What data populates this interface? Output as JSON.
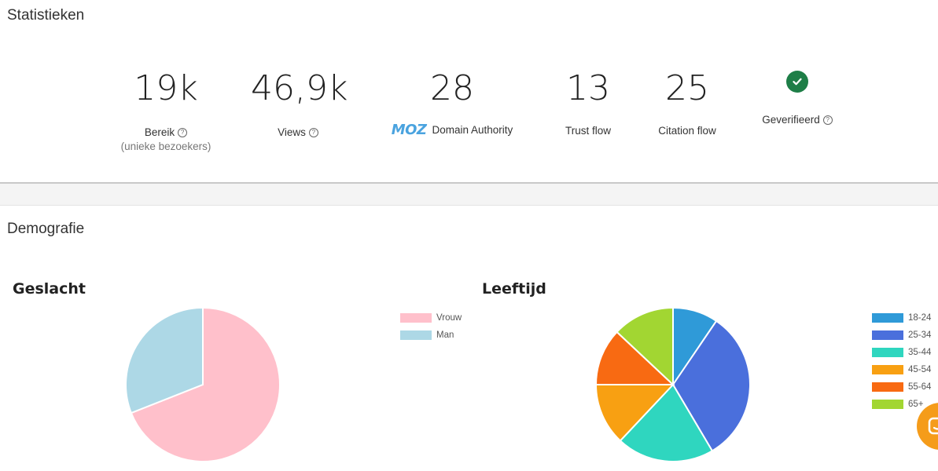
{
  "statistics": {
    "title": "Statistieken",
    "items": [
      {
        "value": "19k",
        "label": "Bereik",
        "sub": "(unieke bezoekers)",
        "help": true
      },
      {
        "value": "46,9k",
        "label": "Views",
        "help": true
      },
      {
        "value": "28",
        "label": "Domain Authority",
        "logo": "MOZ"
      },
      {
        "value": "13",
        "label": "Trust flow"
      },
      {
        "value": "25",
        "label": "Citation flow"
      },
      {
        "label": "Geverifieerd",
        "icon": "check-circle-icon",
        "help": true
      }
    ]
  },
  "demographics": {
    "title": "Demografie"
  },
  "chart_data": [
    {
      "type": "pie",
      "title": "Geslacht",
      "categories": [
        "Vrouw",
        "Man"
      ],
      "values": [
        69,
        31
      ],
      "colors": [
        "#ffc0cb",
        "#add8e6"
      ],
      "legend_position": "top-right"
    },
    {
      "type": "pie",
      "title": "Leeftijd",
      "categories": [
        "18-24",
        "25-34",
        "35-44",
        "45-54",
        "55-64",
        "65+"
      ],
      "values": [
        9.5,
        32,
        20.5,
        13,
        12,
        13
      ],
      "colors": [
        "#2f9ad8",
        "#4a6fdc",
        "#2fd6bf",
        "#f8a012",
        "#f86a12",
        "#a2d632"
      ],
      "legend_position": "top-right"
    }
  ],
  "chat": {
    "icon": "chat-icon",
    "color": "#f59c1a"
  },
  "help_glyph": "?"
}
